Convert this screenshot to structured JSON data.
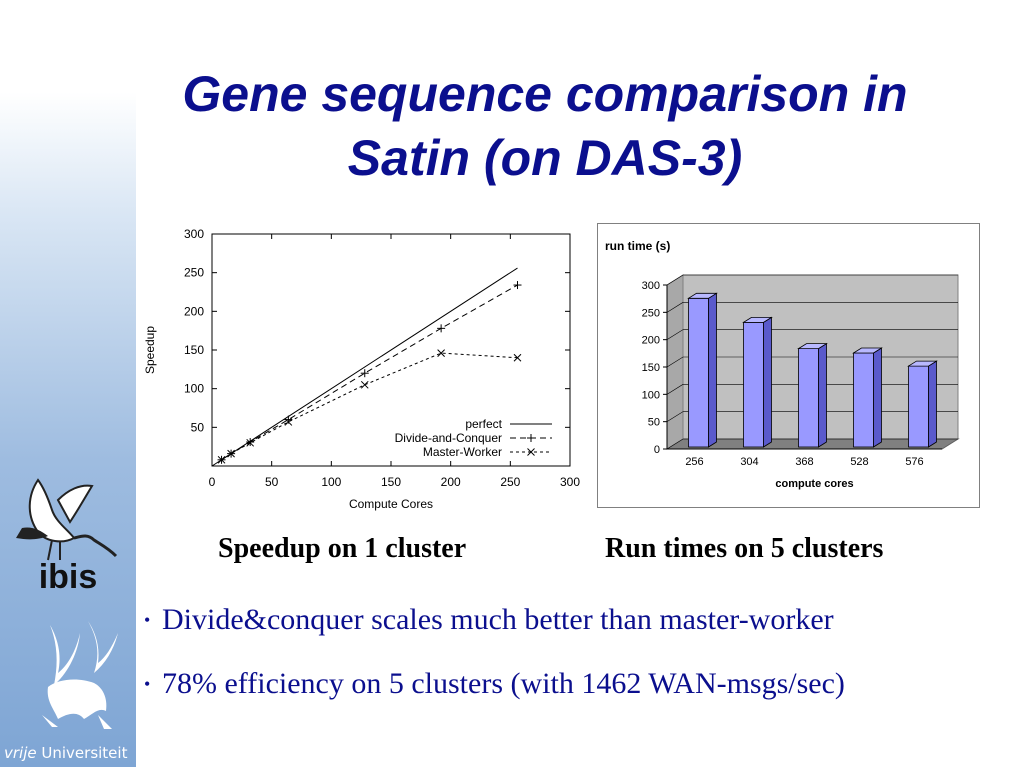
{
  "title_line1": "Gene sequence comparison in",
  "title_line2": "Satin (on DAS-3)",
  "captions": {
    "left": "Speedup on 1 cluster",
    "right": "Run times on 5 clusters"
  },
  "bullets": [
    "Divide&conquer scales much better than master-worker",
    "78% efficiency on 5 clusters (with 1462 WAN-msgs/sec)"
  ],
  "logos": {
    "ibis_text": "ibis",
    "vu_text_italic": "vrije",
    "vu_text": "Universiteit"
  },
  "colors": {
    "title": "#0b0f8e",
    "bullet_text": "#0b0f8e",
    "bar_fill": "#9999ff"
  },
  "chart_data": [
    {
      "type": "line",
      "title": "",
      "xlabel": "Compute Cores",
      "ylabel": "Speedup",
      "xlim": [
        0,
        300
      ],
      "ylim": [
        0,
        300
      ],
      "x_ticks": [
        0,
        50,
        100,
        150,
        200,
        250,
        300
      ],
      "y_ticks": [
        50,
        100,
        150,
        200,
        250,
        300
      ],
      "legend_position": "bottom-right",
      "grid": false,
      "series": [
        {
          "name": "perfect",
          "style": "solid",
          "marker": "none",
          "x": [
            0,
            256
          ],
          "y": [
            0,
            256
          ]
        },
        {
          "name": "Divide-and-Conquer",
          "style": "dashed",
          "marker": "+",
          "x": [
            8,
            16,
            32,
            64,
            128,
            192,
            256
          ],
          "y": [
            8,
            16,
            31,
            60,
            120,
            178,
            234
          ]
        },
        {
          "name": "Master-Worker",
          "style": "dotted",
          "marker": "x",
          "x": [
            8,
            16,
            32,
            64,
            128,
            192,
            256
          ],
          "y": [
            8,
            16,
            30,
            57,
            105,
            146,
            140
          ]
        }
      ]
    },
    {
      "type": "bar",
      "title": "run time (s)",
      "xlabel": "compute cores",
      "ylabel": "",
      "ylim": [
        0,
        300
      ],
      "y_ticks": [
        0,
        50,
        100,
        150,
        200,
        250,
        300
      ],
      "categories": [
        "256",
        "304",
        "368",
        "528",
        "576"
      ],
      "values": [
        272,
        228,
        180,
        172,
        148
      ],
      "grid": true
    }
  ]
}
